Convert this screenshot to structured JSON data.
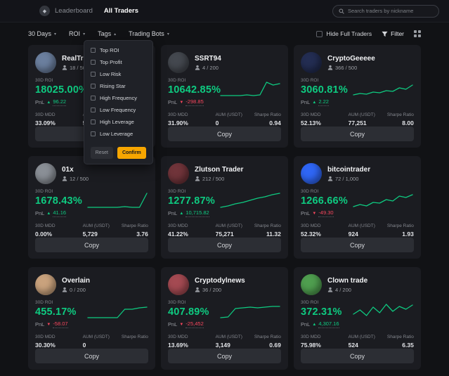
{
  "topbar": {
    "brand": "Leaderboard",
    "active_tab": "All Traders",
    "search_placeholder": "Search traders by nickname"
  },
  "icons": {
    "logo": "◆",
    "pnl_up": "▲",
    "pnl_down": "▼"
  },
  "filters": {
    "dropdowns": [
      {
        "label": "30 Days",
        "caret": "▾"
      },
      {
        "label": "ROI",
        "caret": "▾"
      },
      {
        "label": "Tags",
        "caret": "▴"
      },
      {
        "label": "Trading Bots",
        "caret": "▾"
      }
    ],
    "hide_full_label": "Hide Full Traders",
    "filter_label": "Filter"
  },
  "tags_menu": {
    "options": [
      "Top ROI",
      "Top Profit",
      "Low Risk",
      "Rising Star",
      "High Frequency",
      "Low Frequency",
      "High Leverage",
      "Low Leverage"
    ],
    "reset_label": "Reset",
    "confirm_label": "Confirm"
  },
  "card_labels": {
    "roi": "30D ROI",
    "pnl": "PnL",
    "mdd": "30D MDD",
    "aum": "AUM (USDT)",
    "sharpe": "Sharpe Ratio",
    "copy": "Copy"
  },
  "colors": {
    "positive": "#0ecb81",
    "negative": "#f6465d",
    "accent": "#f7a600"
  },
  "traders": [
    {
      "name": "RealTrad",
      "copiers": "18 / 500",
      "roi": "18025.00%",
      "pnl": "96.22",
      "pnl_dir": "up",
      "mdd": "33.09%",
      "aum": "547",
      "sharpe": "",
      "avatar_color": "#6b7f9e",
      "spark": [
        2,
        2,
        2,
        2,
        2,
        3,
        2,
        3,
        5,
        7
      ]
    },
    {
      "name": "SSRT94",
      "copiers": "4 / 200",
      "roi": "10642.85%",
      "pnl": "-298.85",
      "pnl_dir": "down",
      "mdd": "31.90%",
      "aum": "0",
      "sharpe": "0.94",
      "avatar_color": "#44484f",
      "spark": [
        3,
        3,
        3,
        3,
        4,
        3,
        4,
        22,
        18,
        20
      ]
    },
    {
      "name": "CryptoGeeeee",
      "copiers": "366 / 500",
      "roi": "3060.81%",
      "pnl": "2.22",
      "pnl_dir": "up",
      "mdd": "52.13%",
      "aum": "77,251",
      "sharpe": "8.00",
      "avatar_color": "#232d52",
      "spark": [
        4,
        6,
        5,
        8,
        7,
        10,
        9,
        14,
        12,
        18
      ]
    },
    {
      "name": "01x",
      "copiers": "12 / 500",
      "roi": "1678.43%",
      "pnl": "41.16",
      "pnl_dir": "up",
      "mdd": "0.00%",
      "aum": "5,729",
      "sharpe": "3.76",
      "avatar_color": "#8a8f96",
      "spark": [
        2,
        2,
        2,
        2,
        2,
        3,
        2,
        2,
        22
      ]
    },
    {
      "name": "Zlutson Trader",
      "copiers": "212 / 500",
      "roi": "1277.87%",
      "pnl": "10,715.82",
      "pnl_dir": "up",
      "mdd": "41.22%",
      "aum": "75,271",
      "sharpe": "11.32",
      "avatar_color": "#70343a",
      "spark": [
        2,
        4,
        7,
        9,
        12,
        15,
        17,
        20,
        22
      ]
    },
    {
      "name": "bitcointrader",
      "copiers": "72 / 1,000",
      "roi": "1266.66%",
      "pnl": "-49.30",
      "pnl_dir": "down",
      "mdd": "52.32%",
      "aum": "924",
      "sharpe": "1.93",
      "avatar_color": "#2f66f5",
      "spark": [
        3,
        6,
        4,
        9,
        8,
        13,
        11,
        18,
        16,
        20
      ]
    },
    {
      "name": "Overlain",
      "copiers": "0 / 200",
      "roi": "455.17%",
      "pnl": "-58.07",
      "pnl_dir": "down",
      "mdd": "30.30%",
      "aum": "0",
      "sharpe": "",
      "avatar_color": "#c9a27d",
      "spark": [
        3,
        3,
        3,
        3,
        3,
        15,
        15,
        17,
        18
      ]
    },
    {
      "name": "Cryptodylnews",
      "copiers": "36 / 200",
      "roi": "407.89%",
      "pnl": "-25,452",
      "pnl_dir": "down",
      "mdd": "13.69%",
      "aum": "3,149",
      "sharpe": "0.69",
      "avatar_color": "#a44a52",
      "spark": [
        3,
        4,
        16,
        17,
        18,
        17,
        18,
        19,
        19
      ]
    },
    {
      "name": "Clown trade",
      "copiers": "4 / 200",
      "roi": "372.31%",
      "pnl": "4,307.16",
      "pnl_dir": "up",
      "mdd": "75.98%",
      "aum": "524",
      "sharpe": "6.35",
      "avatar_color": "#4f9e4f",
      "spark": [
        8,
        14,
        6,
        18,
        10,
        22,
        12,
        19,
        15,
        21
      ]
    }
  ]
}
